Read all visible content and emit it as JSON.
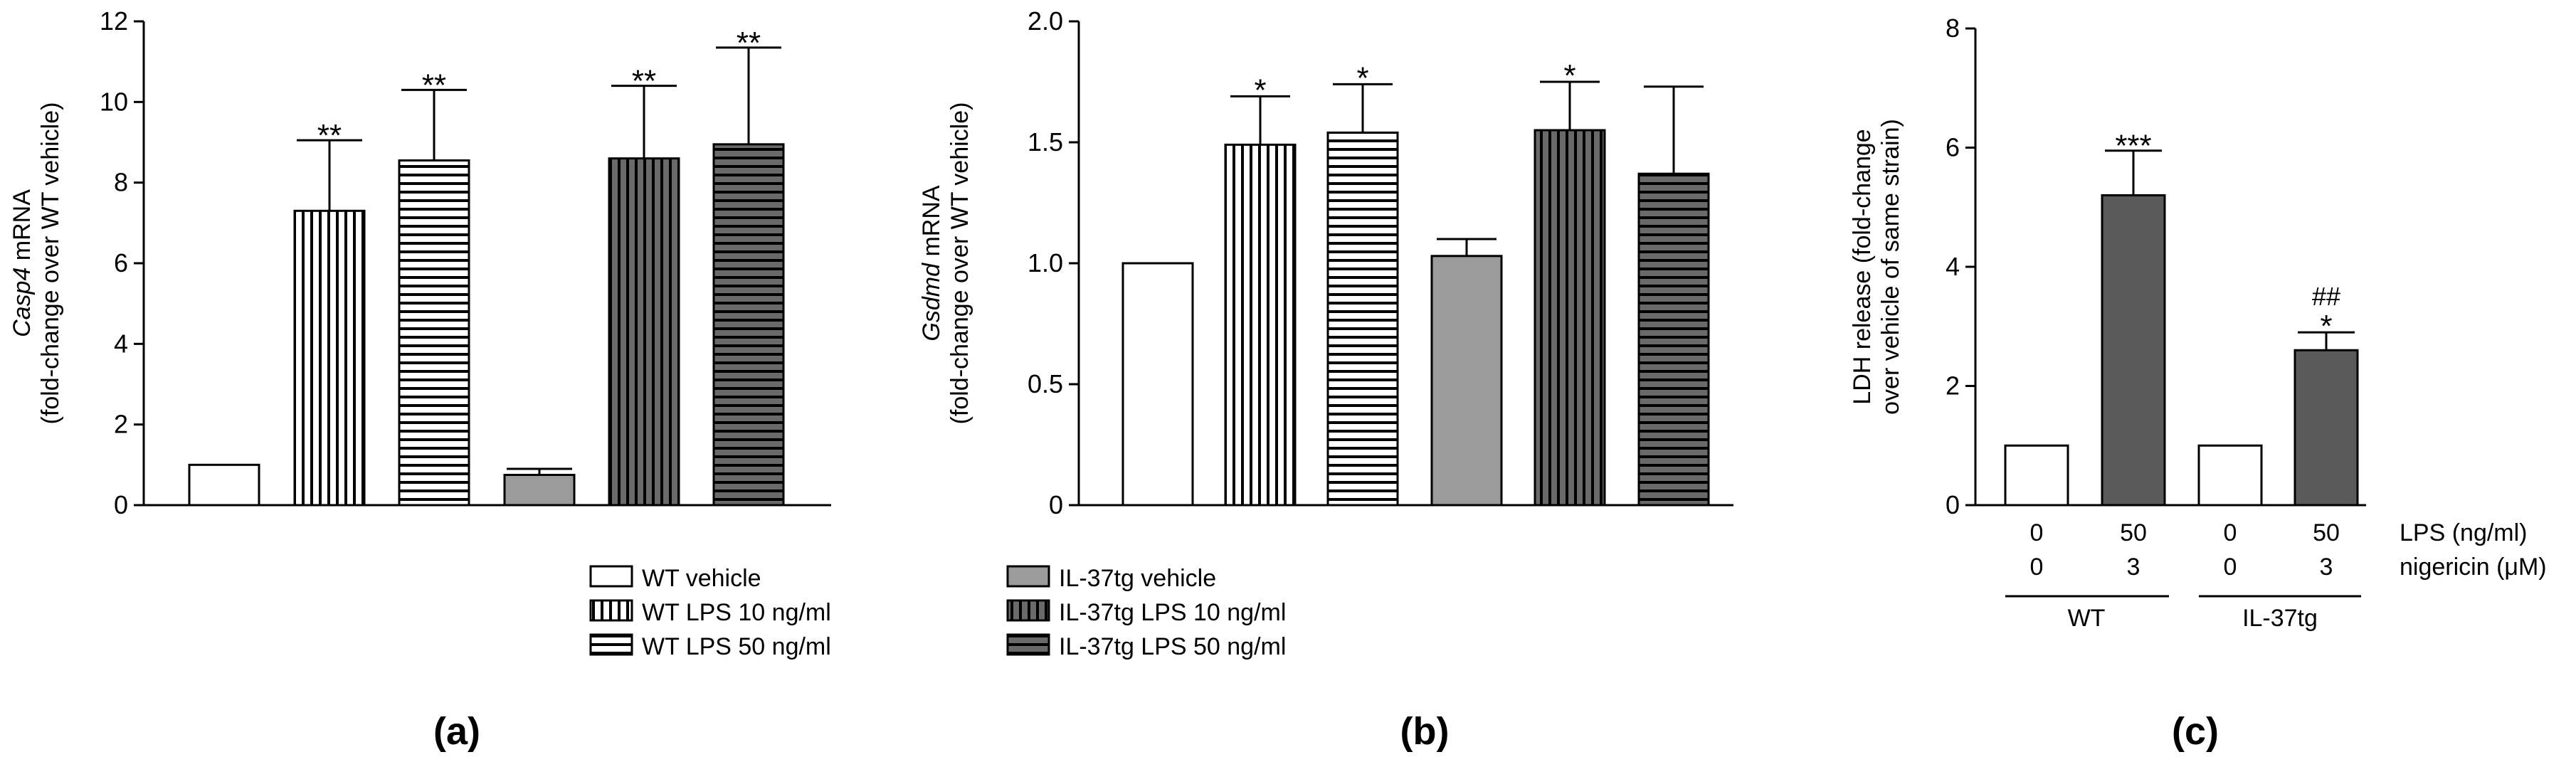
{
  "chart_data": [
    {
      "type": "bar",
      "panel_label": "(a)",
      "ylabel_italic": "Casp4",
      "ylabel_rest": " mRNA",
      "ylabel_line2": "(fold-change over WT vehicle)",
      "ylim": [
        0,
        12
      ],
      "yticks": [
        "0",
        "2",
        "4",
        "6",
        "8",
        "10",
        "12"
      ],
      "categories": [
        "WT vehicle",
        "WT LPS 10 ng/ml",
        "WT LPS 50 ng/ml",
        "IL-37tg vehicle",
        "IL-37tg LPS 10 ng/ml",
        "IL-37tg LPS 50 ng/ml"
      ],
      "values": [
        1.0,
        7.3,
        8.55,
        0.75,
        8.6,
        8.95
      ],
      "errors": [
        0,
        1.75,
        1.75,
        0.15,
        1.8,
        2.4
      ],
      "significance": [
        "",
        "**",
        "**",
        "",
        "**",
        "**"
      ]
    },
    {
      "type": "bar",
      "panel_label": "(b)",
      "ylabel_italic": "Gsdmd",
      "ylabel_rest": " mRNA",
      "ylabel_line2": "(fold-change over WT vehicle)",
      "ylim": [
        0,
        2.0
      ],
      "yticks": [
        "0",
        "0.5",
        "1.0",
        "1.5",
        "2.0"
      ],
      "categories": [
        "WT vehicle",
        "WT LPS 10 ng/ml",
        "WT LPS 50 ng/ml",
        "IL-37tg vehicle",
        "IL-37tg LPS 10 ng/ml",
        "IL-37tg LPS 50 ng/ml"
      ],
      "values": [
        1.0,
        1.49,
        1.54,
        1.03,
        1.55,
        1.37
      ],
      "errors": [
        0,
        0.2,
        0.2,
        0.07,
        0.2,
        0.36
      ],
      "significance": [
        "",
        "*",
        "*",
        "",
        "*",
        ""
      ]
    },
    {
      "type": "bar",
      "panel_label": "(c)",
      "ylabel_line1": "LDH release (fold-change",
      "ylabel_line2": "over vehicle of same strain)",
      "ylim": [
        0,
        8
      ],
      "yticks": [
        "0",
        "2",
        "4",
        "6",
        "8"
      ],
      "categories": [
        "WT 0/0",
        "WT 50/3",
        "IL-37tg 0/0",
        "IL-37tg 50/3"
      ],
      "values": [
        1.0,
        5.2,
        1.0,
        2.6
      ],
      "errors": [
        0,
        0.75,
        0,
        0.3
      ],
      "significance": [
        "",
        "***",
        "",
        "*"
      ],
      "significance2": [
        "",
        "",
        "",
        "##"
      ],
      "lps_row": [
        "0",
        "50",
        "0",
        "50"
      ],
      "lps_label": "LPS (ng/ml)",
      "nigericin_row": [
        "0",
        "3",
        "0",
        "3"
      ],
      "nigericin_label": "nigericin (μM)",
      "groups": [
        "WT",
        "IL-37tg"
      ]
    }
  ],
  "legend": {
    "wt_vehicle": "WT vehicle",
    "wt_lps10": "WT LPS 10 ng/ml",
    "wt_lps50": "WT LPS 50 ng/ml",
    "il37_vehicle": "IL-37tg vehicle",
    "il37_lps10": "IL-37tg LPS 10 ng/ml",
    "il37_lps50": "IL-37tg LPS 50 ng/ml"
  },
  "colors": {
    "axis": "#000000",
    "il37_vehicle_fill": "#9b9b9b",
    "il37_stripe_fill": "#6a6a6a",
    "c_treated_fill": "#5a5a5a"
  }
}
